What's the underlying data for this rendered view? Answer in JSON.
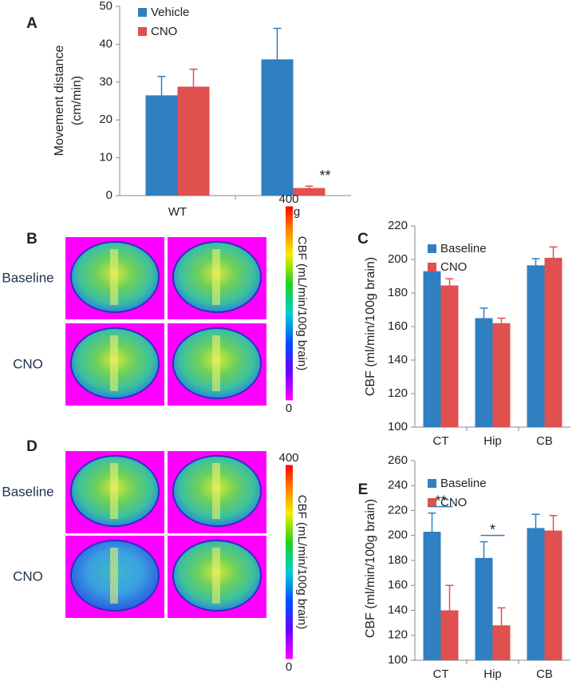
{
  "chart_data": [
    {
      "type": "bar",
      "panel": "A",
      "ylabel": [
        "Movement distance",
        "(cm/min)"
      ],
      "categories": [
        "WT",
        "Tg"
      ],
      "series": [
        {
          "name": "Vehicle",
          "color": "#2f7fc1",
          "values": [
            26.5,
            36
          ],
          "errors": [
            5,
            8.2
          ]
        },
        {
          "name": "CNO",
          "color": "#e0504f",
          "values": [
            28.8,
            2
          ],
          "errors": [
            4.6,
            0.5
          ]
        }
      ],
      "ylim": [
        0,
        50
      ],
      "yticks": [
        0,
        10,
        20,
        30,
        40,
        50
      ],
      "annotations": [
        "**"
      ]
    },
    {
      "type": "bar",
      "panel": "C",
      "ylabel": [
        "CBF (ml/min/100g brain)"
      ],
      "categories": [
        "CT",
        "Hip",
        "CB"
      ],
      "series": [
        {
          "name": "Baseline",
          "color": "#2f7fc1",
          "values": [
            193,
            165,
            196.5
          ],
          "errors": [
            2,
            6,
            4
          ]
        },
        {
          "name": "CNO",
          "color": "#e0504f",
          "values": [
            184.5,
            162,
            201
          ],
          "errors": [
            4,
            3,
            6.5
          ]
        }
      ],
      "ylim": [
        100,
        220
      ],
      "yticks": [
        100,
        120,
        140,
        160,
        180,
        200,
        220
      ],
      "annotations": []
    },
    {
      "type": "bar",
      "panel": "E",
      "ylabel": [
        "CBF (ml/min/100g brain)"
      ],
      "categories": [
        "CT",
        "Hip",
        "CB"
      ],
      "series": [
        {
          "name": "Baseline",
          "color": "#2f7fc1",
          "values": [
            203,
            182,
            206
          ],
          "errors": [
            15,
            13,
            11
          ]
        },
        {
          "name": "CNO",
          "color": "#e0504f",
          "values": [
            140,
            128,
            204
          ],
          "errors": [
            20,
            14,
            12
          ]
        }
      ],
      "ylim": [
        100,
        260
      ],
      "yticks": [
        100,
        120,
        140,
        160,
        180,
        200,
        220,
        240,
        260
      ],
      "annotations": [
        "**",
        "*"
      ]
    }
  ],
  "image_panels": [
    {
      "panel": "B",
      "row_labels": [
        "Baseline",
        "CNO"
      ],
      "colorbar": {
        "label": "CBF (mL/min/100g brain)",
        "clim": [
          0,
          400
        ],
        "ticks": [
          0,
          400
        ]
      }
    },
    {
      "panel": "D",
      "row_labels": [
        "Baseline",
        "CNO"
      ],
      "colorbar": {
        "label": "CBF (mL/min/100g brain)",
        "clim": [
          0,
          400
        ],
        "ticks": [
          0,
          400
        ]
      }
    }
  ]
}
